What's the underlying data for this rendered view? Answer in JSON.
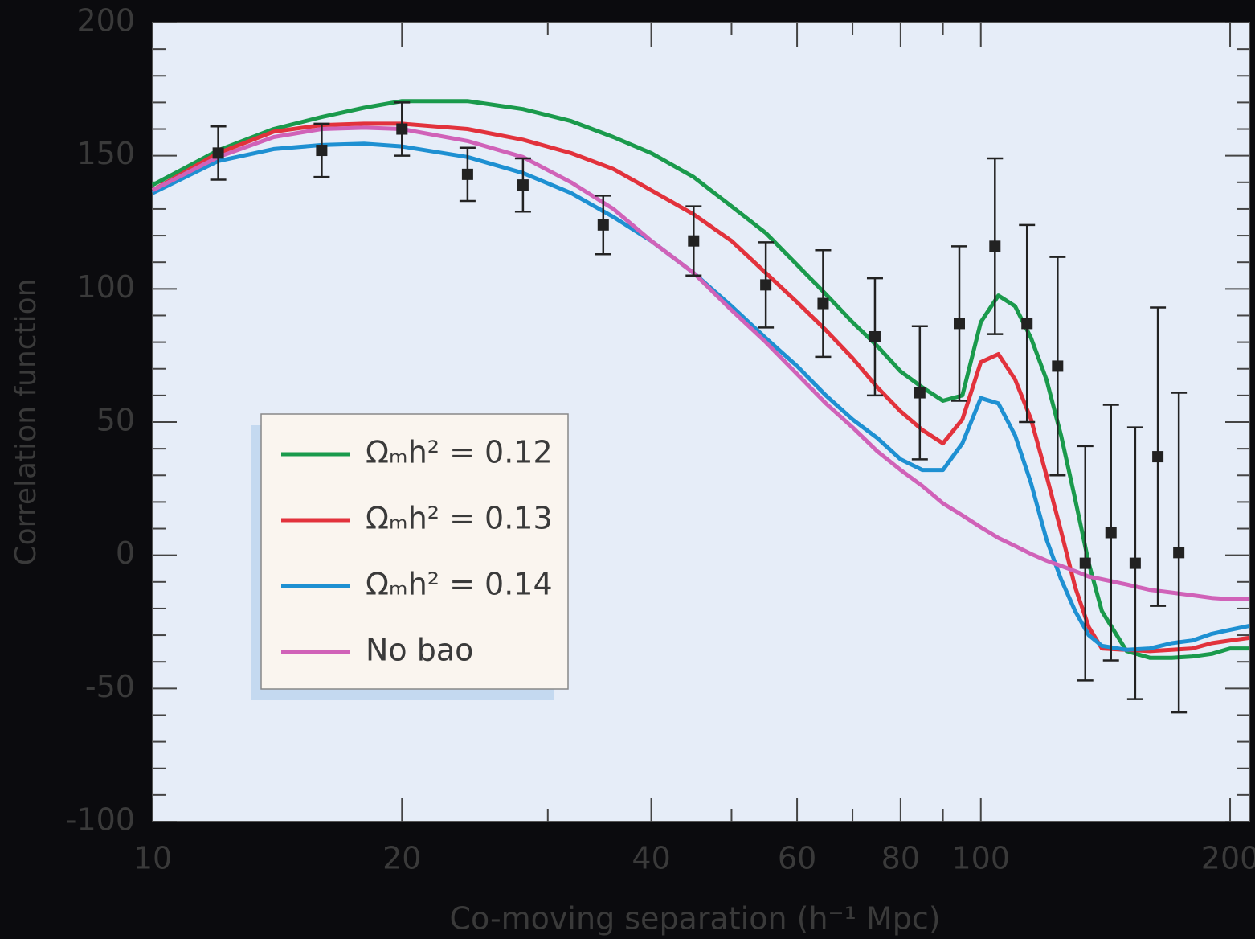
{
  "chart_data": {
    "type": "line",
    "x_label": "Co-moving separation (h⁻¹ Mpc)",
    "y_label": "Correlation function",
    "xscale": "log",
    "xlim": [
      10,
      211
    ],
    "ylim": [
      -100,
      200
    ],
    "xticks": [
      10,
      20,
      40,
      60,
      80,
      100,
      200
    ],
    "xminor": [
      30,
      50,
      70,
      90
    ],
    "yticks": [
      -100,
      -50,
      0,
      50,
      100,
      150,
      200
    ],
    "yminor": [
      -90,
      -80,
      -70,
      -60,
      -40,
      -30,
      -20,
      -10,
      10,
      20,
      30,
      40,
      60,
      70,
      80,
      90,
      110,
      120,
      130,
      140,
      160,
      170,
      180,
      190
    ],
    "legend": "lower left",
    "x": [
      10,
      12,
      14,
      16,
      18,
      20,
      24,
      28,
      32,
      36,
      40,
      45,
      50,
      55,
      60,
      65,
      70,
      75,
      80,
      85,
      90,
      95,
      100,
      105,
      110,
      115,
      120,
      125,
      130,
      135,
      140,
      150,
      160,
      170,
      180,
      190,
      200,
      211
    ],
    "series": [
      {
        "name": "Ωₘh² = 0.12",
        "color": "#1a9a4c",
        "values": [
          139,
          152,
          160,
          164.5,
          168,
          170.5,
          170.5,
          167.5,
          163,
          157,
          151,
          142,
          131,
          121,
          109,
          98,
          87.5,
          78.5,
          69,
          63,
          58,
          60,
          87.5,
          97.5,
          93.5,
          81.5,
          66,
          45,
          21,
          -3,
          -21,
          -36,
          -38.5,
          -38.5,
          -38,
          -37,
          -35,
          -35
        ]
      },
      {
        "name": "Ωₘh² = 0.13",
        "color": "#e2323c",
        "values": [
          137,
          151,
          159,
          161.5,
          162,
          162,
          160,
          156,
          151,
          145,
          137,
          128,
          118,
          106,
          95,
          84.5,
          74,
          63,
          54,
          47,
          42,
          51,
          72.5,
          75.5,
          66,
          51,
          30,
          9,
          -12,
          -27,
          -35,
          -35.5,
          -36,
          -35.5,
          -35,
          -33,
          -32,
          -31
        ]
      },
      {
        "name": "Ωₘh² = 0.14",
        "color": "#1e90d2",
        "values": [
          136,
          148,
          152.5,
          154,
          154.5,
          153.5,
          149.5,
          143.5,
          136,
          127,
          118,
          106,
          93.5,
          81.5,
          71,
          60,
          51,
          44,
          36,
          32,
          32,
          42,
          59,
          57,
          45,
          27,
          6,
          -9,
          -21,
          -30,
          -34,
          -35.5,
          -35,
          -33,
          -32,
          -29.5,
          -28,
          -26.5
        ]
      },
      {
        "name": "No bao",
        "color": "#d062b8",
        "values": [
          137,
          149.5,
          157,
          160,
          160.5,
          160,
          155.5,
          149.5,
          140,
          130,
          118,
          106,
          92,
          80,
          68,
          57,
          48,
          39,
          32,
          26,
          19.5,
          15,
          10.5,
          6.5,
          3.5,
          0.5,
          -2,
          -4,
          -6,
          -8,
          -9,
          -11,
          -13,
          -14,
          -15,
          -16,
          -16.5,
          -16.5
        ]
      }
    ],
    "measurements": {
      "color": "#222222",
      "x": [
        12,
        16,
        20,
        24,
        28,
        35,
        45,
        55,
        64.5,
        74.5,
        84.4,
        94.2,
        104,
        113.7,
        123.8,
        133.7,
        143.6,
        153.6,
        163.6,
        173.4
      ],
      "values": [
        151,
        152,
        160,
        143,
        139,
        124,
        118,
        101.5,
        94.5,
        82,
        61,
        87,
        116,
        87,
        71,
        -3,
        8.5,
        -3,
        37,
        1
      ],
      "errors": [
        10,
        10,
        10,
        10,
        10,
        11,
        13,
        16,
        20,
        22,
        25,
        29,
        33,
        37,
        41,
        44,
        48,
        51,
        56,
        60
      ]
    }
  }
}
